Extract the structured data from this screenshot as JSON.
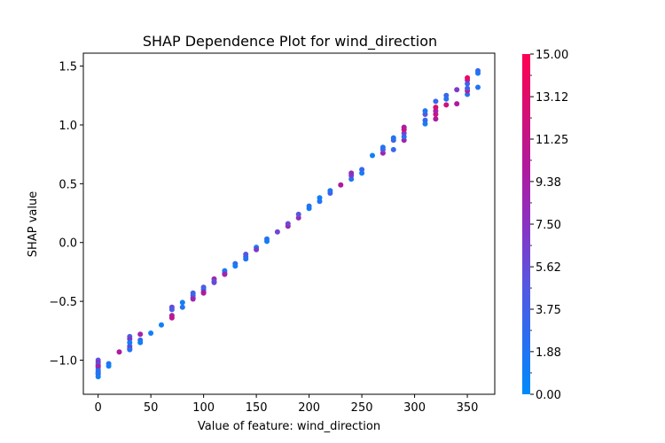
{
  "chart_data": {
    "type": "scatter",
    "title": "SHAP Dependence Plot for wind_direction",
    "xlabel": "Value of feature: wind_direction",
    "ylabel": "SHAP value",
    "xlim": [
      -14,
      376
    ],
    "ylim": [
      -1.29,
      1.61
    ],
    "xticks": [
      0,
      50,
      100,
      150,
      200,
      250,
      300,
      350
    ],
    "xtick_labels": [
      "0",
      "50",
      "100",
      "150",
      "200",
      "250",
      "300",
      "350"
    ],
    "yticks": [
      -1.0,
      -0.5,
      0.0,
      0.5,
      1.0,
      1.5
    ],
    "ytick_labels": [
      "−1.0",
      "−0.5",
      "0.0",
      "0.5",
      "1.0",
      "1.5"
    ],
    "grid": false,
    "colorbar": {
      "min": 0.0,
      "max": 15.0,
      "ticks": [
        0.0,
        1.88,
        3.75,
        5.62,
        7.5,
        9.38,
        11.25,
        13.12,
        15.0
      ],
      "tick_labels": [
        "0.00",
        "1.88",
        "3.75",
        "5.62",
        "7.50",
        "9.38",
        "11.25",
        "13.12",
        "15.00"
      ],
      "colors": [
        "#008afb",
        "#2b6ef0",
        "#5a55e0",
        "#8a32c2",
        "#b01a9e",
        "#d51073",
        "#ff0052"
      ]
    },
    "points": [
      [
        0,
        -1.0,
        5
      ],
      [
        0,
        -1.02,
        8
      ],
      [
        0,
        -1.04,
        2
      ],
      [
        0,
        -1.06,
        6
      ],
      [
        0,
        -1.08,
        1
      ],
      [
        0,
        -1.1,
        3
      ],
      [
        0,
        -1.12,
        7
      ],
      [
        0,
        -1.14,
        1
      ],
      [
        0,
        -1.05,
        9
      ],
      [
        0,
        -1.11,
        2
      ],
      [
        10,
        -1.03,
        2
      ],
      [
        10,
        -1.05,
        1
      ],
      [
        20,
        -0.93,
        10
      ],
      [
        30,
        -0.8,
        4
      ],
      [
        30,
        -0.82,
        7
      ],
      [
        30,
        -0.85,
        1
      ],
      [
        30,
        -0.88,
        3
      ],
      [
        30,
        -0.9,
        8
      ],
      [
        30,
        -0.91,
        2
      ],
      [
        40,
        -0.78,
        9
      ],
      [
        40,
        -0.83,
        3
      ],
      [
        40,
        -0.85,
        1
      ],
      [
        50,
        -0.77,
        1
      ],
      [
        60,
        -0.7,
        1
      ],
      [
        70,
        -0.55,
        6
      ],
      [
        70,
        -0.57,
        4
      ],
      [
        70,
        -0.62,
        9
      ],
      [
        70,
        -0.64,
        11
      ],
      [
        80,
        -0.51,
        1
      ],
      [
        80,
        -0.55,
        2
      ],
      [
        90,
        -0.43,
        4
      ],
      [
        90,
        -0.45,
        3
      ],
      [
        90,
        -0.47,
        5
      ],
      [
        90,
        -0.48,
        9
      ],
      [
        100,
        -0.38,
        5
      ],
      [
        100,
        -0.4,
        2
      ],
      [
        100,
        -0.42,
        8
      ],
      [
        100,
        -0.43,
        10
      ],
      [
        110,
        -0.31,
        9
      ],
      [
        110,
        -0.33,
        4
      ],
      [
        110,
        -0.34,
        6
      ],
      [
        120,
        -0.24,
        1
      ],
      [
        120,
        -0.26,
        4
      ],
      [
        120,
        -0.27,
        9
      ],
      [
        130,
        -0.18,
        3
      ],
      [
        130,
        -0.2,
        1
      ],
      [
        140,
        -0.1,
        5
      ],
      [
        140,
        -0.12,
        4
      ],
      [
        140,
        -0.14,
        2
      ],
      [
        150,
        -0.04,
        1
      ],
      [
        150,
        -0.06,
        7
      ],
      [
        160,
        0.01,
        1
      ],
      [
        160,
        0.03,
        2
      ],
      [
        170,
        0.09,
        6
      ],
      [
        180,
        0.14,
        9
      ],
      [
        180,
        0.16,
        6
      ],
      [
        190,
        0.21,
        8
      ],
      [
        190,
        0.24,
        5
      ],
      [
        200,
        0.29,
        1
      ],
      [
        200,
        0.31,
        2
      ],
      [
        210,
        0.35,
        2
      ],
      [
        210,
        0.38,
        1
      ],
      [
        220,
        0.42,
        4
      ],
      [
        220,
        0.44,
        2
      ],
      [
        230,
        0.49,
        10
      ],
      [
        240,
        0.54,
        2
      ],
      [
        240,
        0.57,
        6
      ],
      [
        240,
        0.59,
        8
      ],
      [
        250,
        0.59,
        1
      ],
      [
        250,
        0.62,
        3
      ],
      [
        260,
        0.74,
        1
      ],
      [
        270,
        0.76,
        9
      ],
      [
        270,
        0.79,
        5
      ],
      [
        270,
        0.81,
        2
      ],
      [
        280,
        0.79,
        3
      ],
      [
        280,
        0.87,
        4
      ],
      [
        280,
        0.89,
        2
      ],
      [
        290,
        0.87,
        9
      ],
      [
        290,
        0.9,
        2
      ],
      [
        290,
        0.93,
        6
      ],
      [
        290,
        0.96,
        12
      ],
      [
        290,
        0.98,
        10
      ],
      [
        310,
        1.01,
        1
      ],
      [
        310,
        1.04,
        3
      ],
      [
        310,
        1.09,
        5
      ],
      [
        310,
        1.12,
        2
      ],
      [
        320,
        1.05,
        10
      ],
      [
        320,
        1.09,
        12
      ],
      [
        320,
        1.12,
        9
      ],
      [
        320,
        1.15,
        13
      ],
      [
        320,
        1.2,
        3
      ],
      [
        330,
        1.17,
        12
      ],
      [
        330,
        1.22,
        2
      ],
      [
        330,
        1.25,
        3
      ],
      [
        340,
        1.18,
        10
      ],
      [
        340,
        1.3,
        7
      ],
      [
        350,
        1.26,
        2
      ],
      [
        350,
        1.29,
        11
      ],
      [
        350,
        1.31,
        4
      ],
      [
        350,
        1.35,
        3
      ],
      [
        350,
        1.38,
        8
      ],
      [
        350,
        1.4,
        14
      ],
      [
        360,
        1.32,
        2
      ],
      [
        360,
        1.44,
        1
      ],
      [
        360,
        1.46,
        3
      ]
    ]
  }
}
